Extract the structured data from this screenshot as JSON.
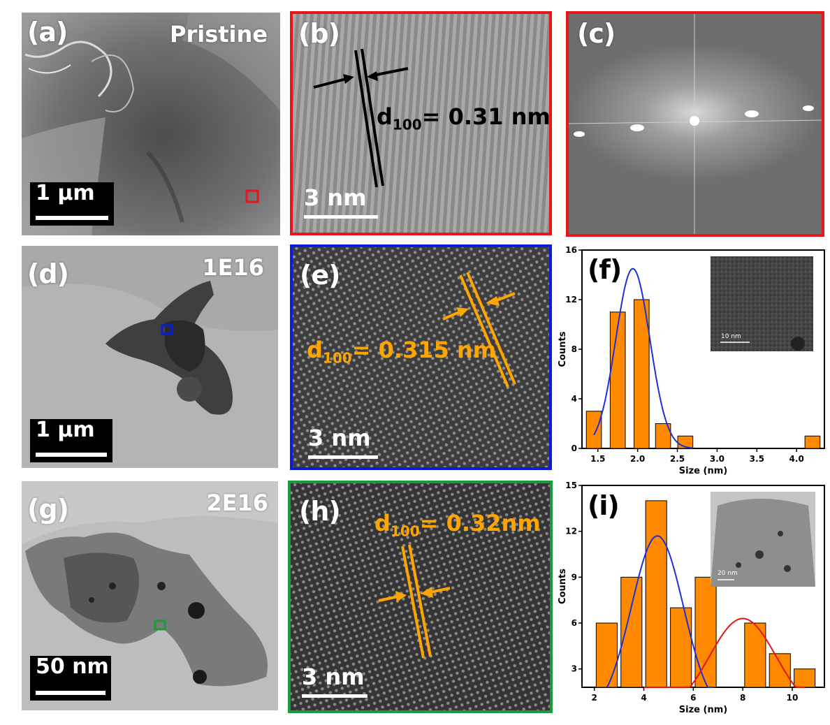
{
  "panels": {
    "a": {
      "label": "(a)",
      "sample": "Pristine",
      "scale": "1 µm"
    },
    "b": {
      "label": "(b)",
      "d_main": "d",
      "d_sub": "100",
      "d_rest": "= 0.31 nm",
      "scale": "3 nm"
    },
    "c": {
      "label": "(c)"
    },
    "d": {
      "label": "(d)",
      "sample": "1E16",
      "scale": "1 µm"
    },
    "e": {
      "label": "(e)",
      "d_main": "d",
      "d_sub": "100",
      "d_rest": "= 0.315 nm",
      "scale": "3 nm"
    },
    "f": {
      "label": "(f)",
      "inset_scale": "10 nm"
    },
    "g": {
      "label": "(g)",
      "sample": "2E16",
      "scale": "50 nm"
    },
    "h": {
      "label": "(h)",
      "d_main": "d",
      "d_sub": "100",
      "d_rest": "= 0.32nm",
      "scale": "3 nm"
    },
    "i": {
      "label": "(i)",
      "inset_scale": "20 nm"
    }
  },
  "colors": {
    "red_frame": "#e8151b",
    "blue_frame": "#0b1ed6",
    "green_frame": "#1a9a3a",
    "orange": "#ffa500",
    "bar_fill": "#ff8a00",
    "fit_blue": "#1f2fd8",
    "fit_red": "#e51414"
  },
  "chart_data": [
    {
      "type": "bar",
      "panel": "f",
      "xlabel": "Size (nm)",
      "ylabel": "Counts",
      "xlim": [
        1.3,
        4.35
      ],
      "ylim": [
        0,
        16
      ],
      "xticks": [
        1.5,
        2.0,
        2.5,
        3.0,
        3.5,
        4.0
      ],
      "xtick_labels": [
        "1.5",
        "2.0",
        "2.5",
        "3.0",
        "3.5",
        "4.0"
      ],
      "yticks": [
        0,
        4,
        8,
        12,
        16
      ],
      "ytick_labels": [
        "0",
        "4",
        "8",
        "12",
        "16"
      ],
      "bin_width": 0.19,
      "bins": [
        {
          "x": 1.45,
          "value": 3
        },
        {
          "x": 1.75,
          "value": 11
        },
        {
          "x": 2.05,
          "value": 12
        },
        {
          "x": 2.32,
          "value": 2
        },
        {
          "x": 2.6,
          "value": 1
        },
        {
          "x": 4.2,
          "value": 1
        }
      ],
      "fits": [
        {
          "color": "fit_blue",
          "amplitude": 14.5,
          "center": 1.94,
          "sigma": 0.215,
          "x_range": [
            1.45,
            2.7
          ]
        }
      ]
    },
    {
      "type": "bar",
      "panel": "i",
      "xlabel": "Size (nm)",
      "ylabel": "Counts",
      "xlim": [
        1.5,
        11.3
      ],
      "ylim": [
        1.8,
        15
      ],
      "xticks": [
        2,
        4,
        6,
        8,
        10
      ],
      "xtick_labels": [
        "2",
        "4",
        "6",
        "8",
        "10"
      ],
      "yticks": [
        3,
        6,
        9,
        12,
        15
      ],
      "ytick_labels": [
        "3",
        "6",
        "9",
        "12",
        "15"
      ],
      "bin_width": 0.85,
      "bins": [
        {
          "x": 2.5,
          "value": 6
        },
        {
          "x": 3.5,
          "value": 9
        },
        {
          "x": 4.5,
          "value": 14
        },
        {
          "x": 5.5,
          "value": 7
        },
        {
          "x": 6.5,
          "value": 9
        },
        {
          "x": 8.5,
          "value": 6
        },
        {
          "x": 9.5,
          "value": 4
        },
        {
          "x": 10.5,
          "value": 3
        }
      ],
      "fits": [
        {
          "color": "fit_blue",
          "amplitude": 11.7,
          "center": 4.55,
          "sigma": 1.05,
          "x_range": [
            2.5,
            6.8
          ]
        },
        {
          "color": "fit_red",
          "amplitude": 6.3,
          "center": 8.0,
          "sigma": 1.35,
          "x_range": [
            4.0,
            10.5
          ]
        }
      ]
    }
  ]
}
